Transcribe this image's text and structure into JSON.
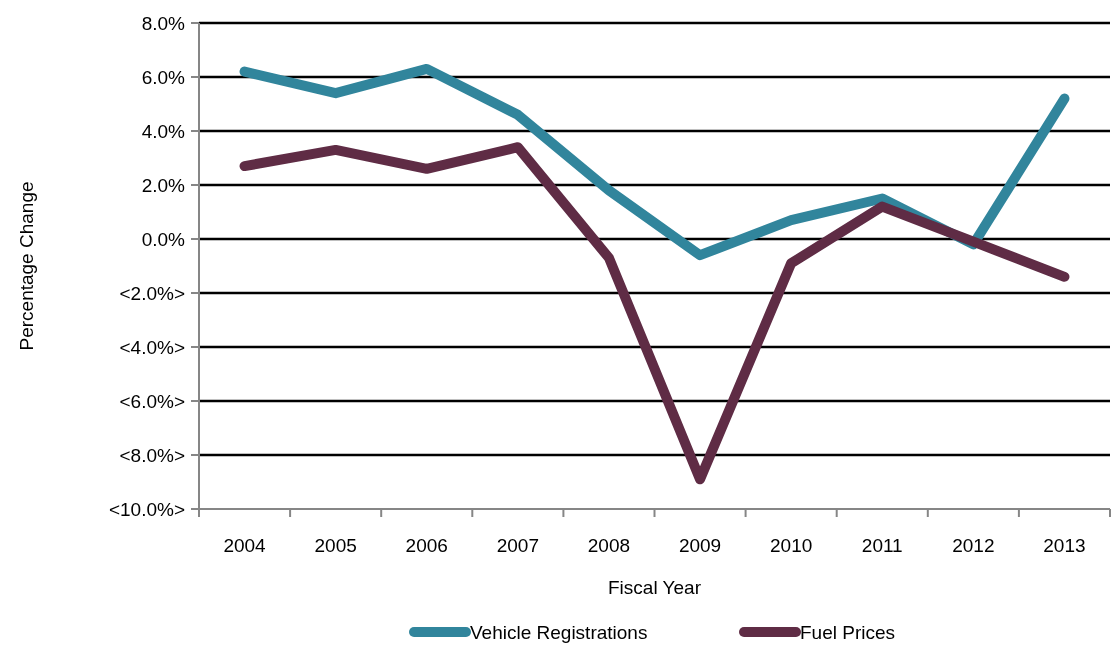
{
  "chart_data": {
    "type": "line",
    "xlabel": "Fiscal Year",
    "ylabel": "Percentage Change",
    "categories": [
      "2004",
      "2005",
      "2006",
      "2007",
      "2008",
      "2009",
      "2010",
      "2011",
      "2012",
      "2013"
    ],
    "series": [
      {
        "name": "Vehicle Registrations",
        "color": "#31859c",
        "values": [
          6.2,
          5.4,
          6.3,
          4.6,
          1.8,
          -0.6,
          0.7,
          1.5,
          -0.2,
          5.2
        ]
      },
      {
        "name": "Fuel Prices",
        "color": "#5f2c45",
        "values": [
          2.7,
          3.3,
          2.6,
          3.4,
          -0.7,
          -8.9,
          -0.9,
          1.2,
          -0.1,
          -1.4
        ]
      }
    ],
    "ylim": [
      -10,
      8
    ],
    "yticks": [
      {
        "value": -10,
        "label": "<10.0%>"
      },
      {
        "value": -8,
        "label": "<8.0%>"
      },
      {
        "value": -6,
        "label": "<6.0%>"
      },
      {
        "value": -4,
        "label": "<4.0%>"
      },
      {
        "value": -2,
        "label": "<2.0%>"
      },
      {
        "value": 0,
        "label": "0.0%"
      },
      {
        "value": 2,
        "label": "2.0%"
      },
      {
        "value": 4,
        "label": "4.0%"
      },
      {
        "value": 6,
        "label": "6.0%"
      },
      {
        "value": 8,
        "label": "8.0%"
      }
    ],
    "grid": "y",
    "legend": "bottom",
    "marker": "none",
    "line_style": "solid"
  }
}
